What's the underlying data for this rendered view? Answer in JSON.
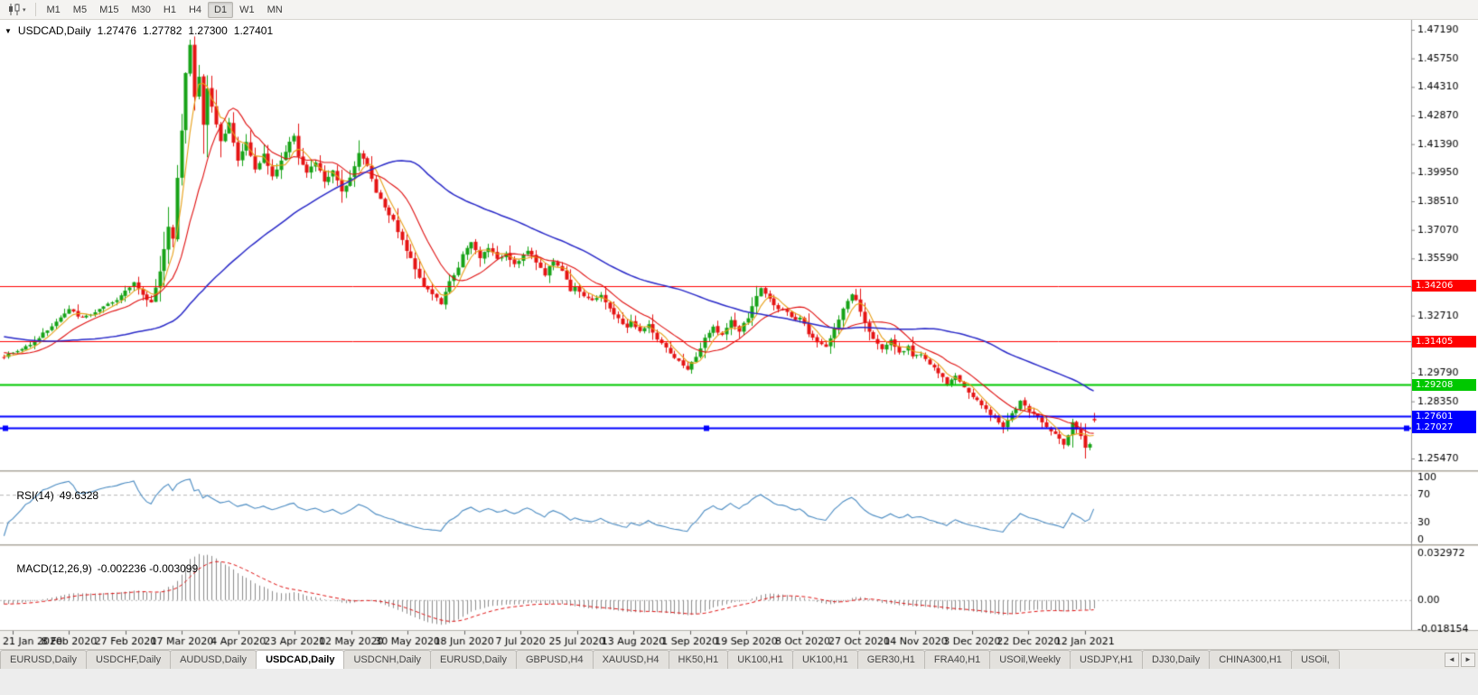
{
  "toolbar": {
    "chart_type_icon": "candlestick-chart-icon",
    "dropdown_glyph": "▾",
    "timeframes": [
      "M1",
      "M5",
      "M15",
      "M30",
      "H1",
      "H4",
      "D1",
      "W1",
      "MN"
    ],
    "active_timeframe": "D1"
  },
  "chart_header": {
    "dropdown_glyph": "▼",
    "symbol_period": "USDCAD,Daily",
    "open": "1.27476",
    "high": "1.27782",
    "low": "1.27300",
    "close": "1.27401"
  },
  "chart_data": {
    "type": "candlestick",
    "symbol": "USDCAD",
    "period": "Daily",
    "bars": 253,
    "y_max": 1.4719,
    "y_min": 1.2547,
    "y_ticks": [
      "1.47190",
      "1.45750",
      "1.44310",
      "1.42870",
      "1.41390",
      "1.39950",
      "1.38510",
      "1.37070",
      "1.35590",
      "1.34150",
      "1.32710",
      "1.31270",
      "1.29790",
      "1.28350",
      "1.26910",
      "1.25470"
    ],
    "x_labels": [
      "21 Jan 2020",
      "8 Feb 2020",
      "27 Feb 2020",
      "17 Mar 2020",
      "4 Apr 2020",
      "23 Apr 2020",
      "12 May 2020",
      "30 May 2020",
      "18 Jun 2020",
      "7 Jul 2020",
      "25 Jul 2020",
      "13 Aug 2020",
      "1 Sep 2020",
      "19 Sep 2020",
      "8 Oct 2020",
      "27 Oct 2020",
      "14 Nov 2020",
      "3 Dec 2020",
      "22 Dec 2020",
      "12 Jan 2021"
    ],
    "prehistory": {
      "count": 60,
      "from": 1.329,
      "to": 1.3068
    },
    "close_anchors": [
      [
        0,
        1.3065
      ],
      [
        4,
        1.31
      ],
      [
        8,
        1.316
      ],
      [
        12,
        1.324
      ],
      [
        15,
        1.33
      ],
      [
        18,
        1.3258
      ],
      [
        22,
        1.33
      ],
      [
        26,
        1.3348
      ],
      [
        28,
        1.34
      ],
      [
        30,
        1.3442
      ],
      [
        32,
        1.337
      ],
      [
        34,
        1.3336
      ],
      [
        36,
        1.35
      ],
      [
        38,
        1.3716
      ],
      [
        39,
        1.3654
      ],
      [
        40,
        1.3976
      ],
      [
        41,
        1.4216
      ],
      [
        42,
        1.45
      ],
      [
        43,
        1.464
      ],
      [
        44,
        1.4378
      ],
      [
        45,
        1.4478
      ],
      [
        46,
        1.424
      ],
      [
        47,
        1.4418
      ],
      [
        48,
        1.433
      ],
      [
        50,
        1.4152
      ],
      [
        52,
        1.4246
      ],
      [
        54,
        1.4062
      ],
      [
        56,
        1.4148
      ],
      [
        58,
        1.401
      ],
      [
        60,
        1.4088
      ],
      [
        62,
        1.3972
      ],
      [
        64,
        1.4058
      ],
      [
        66,
        1.4146
      ],
      [
        67,
        1.4188
      ],
      [
        68,
        1.408
      ],
      [
        70,
        1.3992
      ],
      [
        72,
        1.4048
      ],
      [
        74,
        1.3952
      ],
      [
        76,
        1.4
      ],
      [
        78,
        1.3902
      ],
      [
        80,
        1.397
      ],
      [
        82,
        1.4098
      ],
      [
        84,
        1.4028
      ],
      [
        86,
        1.39
      ],
      [
        88,
        1.3822
      ],
      [
        90,
        1.3752
      ],
      [
        92,
        1.365
      ],
      [
        93,
        1.3602
      ],
      [
        95,
        1.3512
      ],
      [
        97,
        1.3422
      ],
      [
        99,
        1.3382
      ],
      [
        101,
        1.3332
      ],
      [
        103,
        1.344
      ],
      [
        105,
        1.352
      ],
      [
        106,
        1.3578
      ],
      [
        108,
        1.364
      ],
      [
        110,
        1.3562
      ],
      [
        112,
        1.362
      ],
      [
        114,
        1.3552
      ],
      [
        116,
        1.359
      ],
      [
        118,
        1.3532
      ],
      [
        121,
        1.36
      ],
      [
        123,
        1.3542
      ],
      [
        125,
        1.3482
      ],
      [
        127,
        1.355
      ],
      [
        129,
        1.35
      ],
      [
        131,
        1.3402
      ],
      [
        132,
        1.3422
      ],
      [
        134,
        1.3372
      ],
      [
        136,
        1.3342
      ],
      [
        138,
        1.338
      ],
      [
        140,
        1.3302
      ],
      [
        142,
        1.3252
      ],
      [
        144,
        1.3212
      ],
      [
        145,
        1.324
      ],
      [
        147,
        1.3192
      ],
      [
        149,
        1.3222
      ],
      [
        151,
        1.3152
      ],
      [
        153,
        1.3102
      ],
      [
        155,
        1.3052
      ],
      [
        157,
        1.3022
      ],
      [
        158,
        1.3
      ],
      [
        160,
        1.3062
      ],
      [
        162,
        1.3152
      ],
      [
        164,
        1.3212
      ],
      [
        166,
        1.3172
      ],
      [
        168,
        1.3242
      ],
      [
        170,
        1.3192
      ],
      [
        172,
        1.3262
      ],
      [
        174,
        1.3368
      ],
      [
        175,
        1.3412
      ],
      [
        177,
        1.3352
      ],
      [
        179,
        1.331
      ],
      [
        181,
        1.3282
      ],
      [
        183,
        1.3242
      ],
      [
        184,
        1.3262
      ],
      [
        186,
        1.3182
      ],
      [
        188,
        1.3142
      ],
      [
        190,
        1.3112
      ],
      [
        192,
        1.3202
      ],
      [
        194,
        1.3302
      ],
      [
        196,
        1.3382
      ],
      [
        197,
        1.3352
      ],
      [
        199,
        1.3242
      ],
      [
        201,
        1.3152
      ],
      [
        203,
        1.3102
      ],
      [
        205,
        1.3152
      ],
      [
        207,
        1.3082
      ],
      [
        209,
        1.3112
      ],
      [
        210,
        1.3062
      ],
      [
        212,
        1.3082
      ],
      [
        214,
        1.3022
      ],
      [
        216,
        1.2982
      ],
      [
        218,
        1.2922
      ],
      [
        220,
        1.2972
      ],
      [
        222,
        1.2902
      ],
      [
        223,
        1.2882
      ],
      [
        225,
        1.2842
      ],
      [
        227,
        1.2792
      ],
      [
        229,
        1.2752
      ],
      [
        231,
        1.2712
      ],
      [
        233,
        1.2772
      ],
      [
        235,
        1.2832
      ],
      [
        236,
        1.2812
      ],
      [
        238,
        1.2772
      ],
      [
        240,
        1.2732
      ],
      [
        242,
        1.2692
      ],
      [
        244,
        1.2652
      ],
      [
        245,
        1.2612
      ],
      [
        246,
        1.2672
      ],
      [
        247,
        1.2732
      ],
      [
        248,
        1.2702
      ],
      [
        249,
        1.2662
      ],
      [
        250,
        1.2602
      ],
      [
        251,
        1.2622
      ],
      [
        252,
        1.27401
      ]
    ],
    "wick_overrides": {
      "43": {
        "high": 1.4669
      },
      "44": {
        "low": 1.431
      },
      "158": {
        "low": 1.2993
      },
      "250": {
        "low": 1.2547
      },
      "252": {
        "open": 1.27476,
        "high": 1.27782,
        "low": 1.273,
        "close": 1.27401
      }
    },
    "moving_averages": [
      {
        "period": 5,
        "color": "#e8a018"
      },
      {
        "period": 13,
        "color": "#e01010"
      },
      {
        "period": 55,
        "color": "#2929c8"
      }
    ],
    "hlines": [
      {
        "price": 1.34206,
        "label": "1.34206",
        "color": "#ff0000",
        "width": 1,
        "handles": false
      },
      {
        "price": 1.31405,
        "label": "1.31405",
        "color": "#ff0000",
        "width": 1,
        "handles": false
      },
      {
        "price": 1.29208,
        "label": "1.29208",
        "color": "#00c800",
        "width": 2,
        "handles": false
      },
      {
        "price": 1.27601,
        "label": "1.27601",
        "color": "#0000ff",
        "width": 2,
        "handles": false
      },
      {
        "price": 1.27027,
        "label": "1.27027",
        "color": "#0000ff",
        "width": 2,
        "handles": true
      }
    ],
    "rsi": {
      "label": "RSI(14)",
      "value": "49.6328",
      "period": 14,
      "levels": [
        70,
        30
      ],
      "scale": [
        "100",
        "70",
        "30",
        "0"
      ],
      "color": "#4a8bc2"
    },
    "macd": {
      "label": "MACD(12,26,9)",
      "values": "-0.002236 -0.003099",
      "fast": 12,
      "slow": 26,
      "signal_period": 9,
      "scale_top": "0.032972",
      "scale_zero": "0.00",
      "scale_bottom": "-0.018154",
      "range": [
        0.032972,
        -0.018154
      ],
      "histogram_color": "#8c8c8c",
      "signal_color": "#e01010"
    },
    "colors": {
      "up_candle": "#17a317",
      "down_candle": "#e51414"
    }
  },
  "tab_bar": {
    "scroll_left": "◄",
    "scroll_right": "►",
    "tabs": [
      {
        "label": "EURUSD,Daily",
        "active": false
      },
      {
        "label": "USDCHF,Daily",
        "active": false
      },
      {
        "label": "AUDUSD,Daily",
        "active": false
      },
      {
        "label": "USDCAD,Daily",
        "active": true
      },
      {
        "label": "USDCNH,Daily",
        "active": false
      },
      {
        "label": "EURUSD,Daily",
        "active": false
      },
      {
        "label": "GBPUSD,H4",
        "active": false
      },
      {
        "label": "XAUUSD,H4",
        "active": false
      },
      {
        "label": "HK50,H1",
        "active": false
      },
      {
        "label": "UK100,H1",
        "active": false
      },
      {
        "label": "UK100,H1",
        "active": false
      },
      {
        "label": "GER30,H1",
        "active": false
      },
      {
        "label": "FRA40,H1",
        "active": false
      },
      {
        "label": "USOil,Weekly",
        "active": false
      },
      {
        "label": "USDJPY,H1",
        "active": false
      },
      {
        "label": "DJ30,Daily",
        "active": false
      },
      {
        "label": "CHINA300,H1",
        "active": false
      },
      {
        "label": "USOil,",
        "active": false
      }
    ]
  }
}
